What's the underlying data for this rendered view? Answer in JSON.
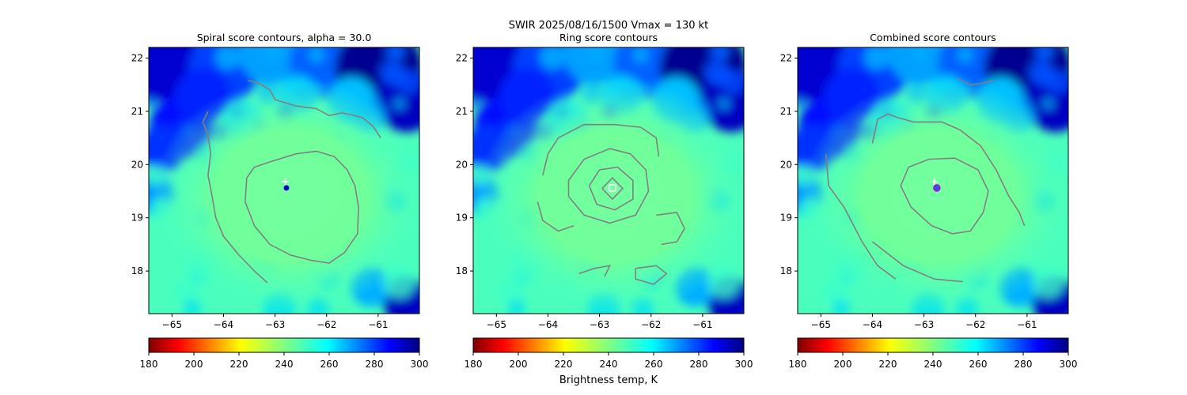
{
  "figure": {
    "suptitle": "SWIR  2025/08/16/1500    Vmax = 130 kt",
    "colorbar_label": "Brightness temp, K"
  },
  "chart_data": [
    {
      "type": "heatmap",
      "title": "Spiral score contours, alpha = 30.0",
      "xlim": [
        -65.45,
        -60.2
      ],
      "ylim": [
        17.2,
        22.2
      ],
      "xticks": [
        -65,
        -64,
        -63,
        -62,
        -61
      ],
      "yticks": [
        18,
        19,
        20,
        21,
        22
      ],
      "image": {
        "center": [
          -62.7,
          19.55
        ],
        "background_temp_K": 248
      },
      "markers": [
        {
          "kind": "plus",
          "x": -62.8,
          "y": 19.68,
          "color": "#ffffff"
        },
        {
          "kind": "dot",
          "x": -62.78,
          "y": 19.56,
          "color": "#0000cc"
        }
      ],
      "contours": [
        {
          "color": "#808080",
          "points": [
            [
              -63.52,
              21.58
            ],
            [
              -63.3,
              21.52
            ],
            [
              -63.1,
              21.4
            ],
            [
              -63.0,
              21.22
            ],
            [
              -62.6,
              21.1
            ],
            [
              -62.2,
              21.05
            ],
            [
              -61.95,
              20.92
            ],
            [
              -61.7,
              20.97
            ],
            [
              -61.5,
              20.93
            ],
            [
              -61.3,
              20.88
            ],
            [
              -61.1,
              20.72
            ],
            [
              -60.95,
              20.5
            ]
          ]
        },
        {
          "color": "#808080",
          "points": [
            [
              -64.3,
              21.0
            ],
            [
              -64.4,
              20.8
            ],
            [
              -64.3,
              20.55
            ],
            [
              -64.25,
              20.2
            ],
            [
              -64.3,
              19.8
            ],
            [
              -64.22,
              19.4
            ],
            [
              -64.15,
              19.0
            ],
            [
              -64.0,
              18.65
            ],
            [
              -63.7,
              18.3
            ],
            [
              -63.4,
              18.0
            ],
            [
              -63.15,
              17.78
            ]
          ]
        },
        {
          "color": "#808080",
          "points": [
            [
              -63.1,
              20.05
            ],
            [
              -62.6,
              20.2
            ],
            [
              -62.2,
              20.25
            ],
            [
              -61.85,
              20.15
            ],
            [
              -61.6,
              19.9
            ],
            [
              -61.45,
              19.6
            ],
            [
              -61.38,
              19.2
            ],
            [
              -61.4,
              18.7
            ],
            [
              -61.65,
              18.35
            ],
            [
              -61.95,
              18.15
            ],
            [
              -62.3,
              18.2
            ],
            [
              -62.7,
              18.3
            ],
            [
              -63.1,
              18.5
            ],
            [
              -63.4,
              18.85
            ],
            [
              -63.58,
              19.3
            ],
            [
              -63.55,
              19.75
            ],
            [
              -63.4,
              19.95
            ],
            [
              -63.1,
              20.05
            ]
          ]
        }
      ]
    },
    {
      "type": "heatmap",
      "title": "Ring score contours",
      "xlim": [
        -65.45,
        -60.2
      ],
      "ylim": [
        17.2,
        22.2
      ],
      "xticks": [
        -65,
        -64,
        -63,
        -62,
        -61
      ],
      "yticks": [
        18,
        19,
        20,
        21,
        22
      ],
      "image": {
        "center": [
          -62.7,
          19.55
        ],
        "background_temp_K": 248
      },
      "markers": [
        {
          "kind": "square",
          "x": -62.75,
          "y": 19.56,
          "color": "#ffffff"
        }
      ],
      "contours": [
        {
          "color": "#808080",
          "points": [
            [
              -62.95,
              19.55
            ],
            [
              -62.75,
              19.75
            ],
            [
              -62.55,
              19.55
            ],
            [
              -62.75,
              19.35
            ],
            [
              -62.95,
              19.55
            ]
          ]
        },
        {
          "color": "#808080",
          "points": [
            [
              -63.2,
              19.6
            ],
            [
              -63.0,
              19.9
            ],
            [
              -62.65,
              19.95
            ],
            [
              -62.35,
              19.7
            ],
            [
              -62.35,
              19.35
            ],
            [
              -62.7,
              19.15
            ],
            [
              -63.05,
              19.25
            ],
            [
              -63.2,
              19.6
            ]
          ]
        },
        {
          "color": "#808080",
          "points": [
            [
              -63.6,
              19.7
            ],
            [
              -63.3,
              20.1
            ],
            [
              -62.8,
              20.3
            ],
            [
              -62.4,
              20.2
            ],
            [
              -62.1,
              19.9
            ],
            [
              -62.05,
              19.5
            ],
            [
              -62.3,
              19.05
            ],
            [
              -62.8,
              18.9
            ],
            [
              -63.3,
              19.05
            ],
            [
              -63.6,
              19.4
            ],
            [
              -63.6,
              19.7
            ]
          ]
        },
        {
          "color": "#808080",
          "points": [
            [
              -64.1,
              19.8
            ],
            [
              -64.0,
              20.2
            ],
            [
              -63.8,
              20.5
            ],
            [
              -63.3,
              20.75
            ],
            [
              -62.7,
              20.75
            ],
            [
              -62.2,
              20.7
            ],
            [
              -61.9,
              20.5
            ],
            [
              -61.85,
              20.15
            ]
          ]
        },
        {
          "color": "#808080",
          "points": [
            [
              -64.2,
              19.3
            ],
            [
              -64.1,
              18.95
            ],
            [
              -63.8,
              18.75
            ],
            [
              -63.5,
              18.85
            ]
          ]
        },
        {
          "color": "#808080",
          "points": [
            [
              -61.9,
              19.05
            ],
            [
              -61.5,
              19.1
            ],
            [
              -61.35,
              18.8
            ],
            [
              -61.5,
              18.55
            ],
            [
              -61.8,
              18.5
            ]
          ]
        },
        {
          "color": "#808080",
          "points": [
            [
              -63.4,
              17.95
            ],
            [
              -63.1,
              18.05
            ],
            [
              -62.8,
              18.1
            ],
            [
              -62.9,
              17.9
            ]
          ]
        },
        {
          "color": "#808080",
          "points": [
            [
              -62.3,
              18.05
            ],
            [
              -61.9,
              18.1
            ],
            [
              -61.7,
              17.95
            ],
            [
              -61.95,
              17.75
            ],
            [
              -62.3,
              17.85
            ],
            [
              -62.3,
              18.05
            ]
          ]
        }
      ]
    },
    {
      "type": "heatmap",
      "title": "Combined score contours",
      "xlim": [
        -65.45,
        -60.2
      ],
      "ylim": [
        17.2,
        22.2
      ],
      "xticks": [
        -65,
        -64,
        -63,
        -62,
        -61
      ],
      "yticks": [
        18,
        19,
        20,
        21,
        22
      ],
      "image": {
        "center": [
          -62.7,
          19.55
        ],
        "background_temp_K": 248
      },
      "markers": [
        {
          "kind": "plus",
          "x": -62.8,
          "y": 19.68,
          "color": "#ffffff"
        },
        {
          "kind": "ring",
          "x": -62.75,
          "y": 19.56,
          "color": "#c000c0"
        }
      ],
      "contours": [
        {
          "color": "#808080",
          "points": [
            [
              -62.35,
              21.62
            ],
            [
              -62.1,
              21.5
            ],
            [
              -61.9,
              21.52
            ],
            [
              -61.65,
              21.58
            ]
          ]
        },
        {
          "color": "#808080",
          "points": [
            [
              -64.0,
              20.4
            ],
            [
              -63.9,
              20.85
            ],
            [
              -63.7,
              20.95
            ],
            [
              -63.5,
              20.88
            ],
            [
              -63.2,
              20.8
            ],
            [
              -62.65,
              20.8
            ],
            [
              -62.3,
              20.65
            ],
            [
              -61.9,
              20.35
            ],
            [
              -61.6,
              19.9
            ],
            [
              -61.35,
              19.4
            ],
            [
              -61.15,
              19.1
            ],
            [
              -61.05,
              18.85
            ]
          ]
        },
        {
          "color": "#808080",
          "points": [
            [
              -64.9,
              20.2
            ],
            [
              -64.85,
              19.6
            ],
            [
              -64.55,
              19.2
            ],
            [
              -64.2,
              18.55
            ],
            [
              -63.9,
              18.1
            ],
            [
              -63.55,
              17.85
            ]
          ]
        },
        {
          "color": "#808080",
          "points": [
            [
              -62.9,
              20.1
            ],
            [
              -62.4,
              20.12
            ],
            [
              -61.95,
              19.9
            ],
            [
              -61.75,
              19.5
            ],
            [
              -61.85,
              19.1
            ],
            [
              -62.1,
              18.75
            ],
            [
              -62.45,
              18.7
            ],
            [
              -62.85,
              18.85
            ],
            [
              -63.25,
              19.2
            ],
            [
              -63.45,
              19.6
            ],
            [
              -63.3,
              19.95
            ],
            [
              -62.9,
              20.1
            ]
          ]
        },
        {
          "color": "#808080",
          "points": [
            [
              -64.0,
              18.55
            ],
            [
              -63.4,
              18.1
            ],
            [
              -62.8,
              17.85
            ],
            [
              -62.25,
              17.8
            ]
          ]
        }
      ]
    }
  ],
  "colorbars": [
    {
      "ticks": [
        180,
        200,
        220,
        240,
        260,
        280,
        300
      ],
      "range": [
        180,
        300
      ],
      "colormap": "jet_r"
    },
    {
      "ticks": [
        180,
        200,
        220,
        240,
        260,
        280,
        300
      ],
      "range": [
        180,
        300
      ],
      "colormap": "jet_r"
    },
    {
      "ticks": [
        180,
        200,
        220,
        240,
        260,
        280,
        300
      ],
      "range": [
        180,
        300
      ],
      "colormap": "jet_r"
    }
  ]
}
